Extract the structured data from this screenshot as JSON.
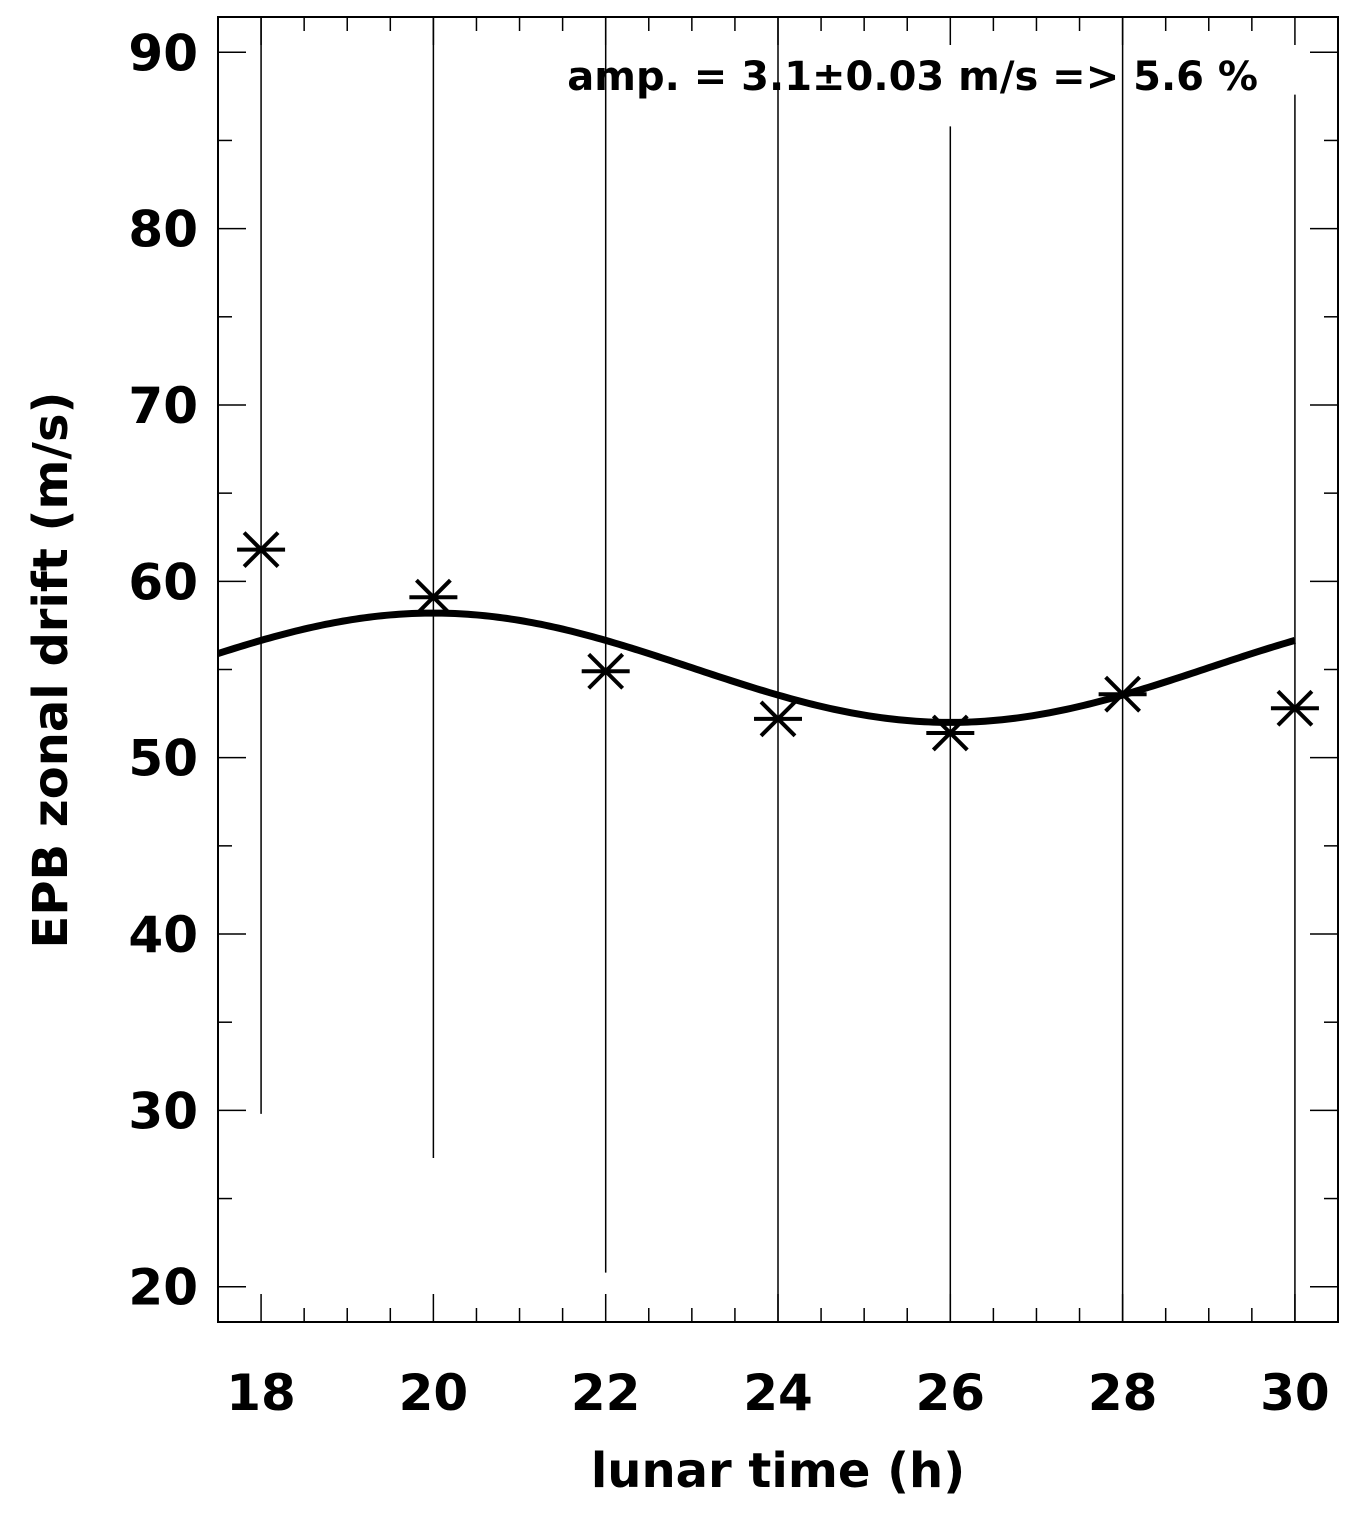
{
  "chart_data": {
    "type": "scatter",
    "xlabel": "lunar time (h)",
    "ylabel": "EPB zonal drift (m/s)",
    "xlim": [
      17.5,
      30.5
    ],
    "ylim": [
      18,
      92
    ],
    "x_ticks": [
      18,
      20,
      22,
      24,
      26,
      28,
      30
    ],
    "y_ticks": [
      20,
      30,
      40,
      50,
      60,
      70,
      80,
      90
    ],
    "x_minor_step": 0.5,
    "y_minor_step": 5,
    "grid": false,
    "annotation": "amp. = 3.1±0.03 m/s =>  5.6 %",
    "series": [
      {
        "kind": "points",
        "marker": "asterisk",
        "x": [
          18,
          20,
          22,
          24,
          26,
          28,
          30
        ],
        "y": [
          61.8,
          59.1,
          54.9,
          52.2,
          51.4,
          53.6,
          52.8
        ],
        "error_low": [
          29.8,
          27.3,
          20.8,
          18,
          18,
          18,
          18
        ],
        "error_high": [
          92,
          92,
          92,
          92,
          85.8,
          92,
          87.6
        ]
      },
      {
        "kind": "fit",
        "mean": 55.1,
        "amplitude": 3.1,
        "period_h": 12,
        "peak_at_h": 20,
        "x_range": [
          17.5,
          30
        ]
      }
    ]
  }
}
